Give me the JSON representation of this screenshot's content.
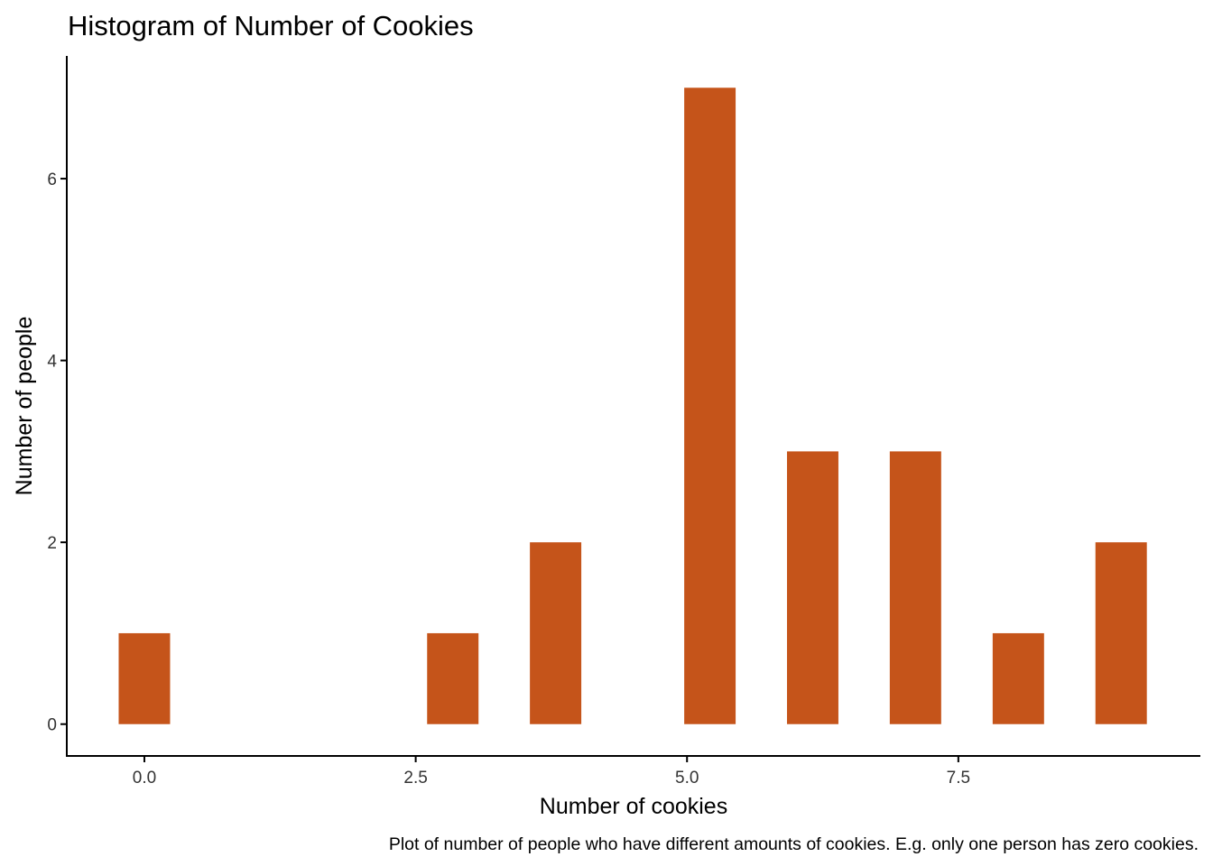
{
  "chart_data": {
    "type": "bar",
    "title": "Histogram of Number of Cookies",
    "xlabel": "Number of cookies",
    "ylabel": "Number of people",
    "caption": "Plot of number of people who have different amounts of cookies.  E.g. only one person has zero cookies.",
    "bin_width": 0.4737,
    "bins": [
      {
        "center": 0,
        "count": 1
      },
      {
        "center": 2.842,
        "count": 1
      },
      {
        "center": 3.789,
        "count": 2
      },
      {
        "center": 5.211,
        "count": 7
      },
      {
        "center": 6.158,
        "count": 3
      },
      {
        "center": 7.105,
        "count": 3
      },
      {
        "center": 8.053,
        "count": 1
      },
      {
        "center": 9,
        "count": 2
      }
    ],
    "xlim": [
      -0.715,
      9.73
    ],
    "ylim": [
      -0.35,
      7.35
    ],
    "xticks": [
      {
        "value": 0,
        "label": "0.0"
      },
      {
        "value": 2.5,
        "label": "2.5"
      },
      {
        "value": 5,
        "label": "5.0"
      },
      {
        "value": 7.5,
        "label": "7.5"
      }
    ],
    "yticks": [
      {
        "value": 0,
        "label": "0"
      },
      {
        "value": 2,
        "label": "2"
      },
      {
        "value": 4,
        "label": "4"
      },
      {
        "value": 6,
        "label": "6"
      }
    ],
    "grid": false,
    "bar_color": "#C5541A"
  }
}
